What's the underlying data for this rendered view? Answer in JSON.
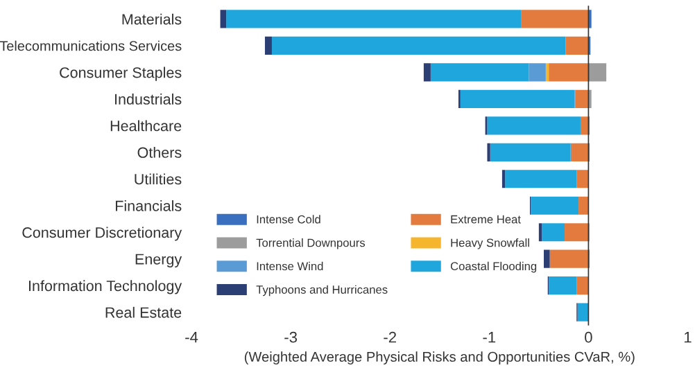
{
  "chart_data": {
    "type": "bar",
    "orientation": "horizontal",
    "stacked": true,
    "xlabel": "(Weighted Average Physical Risks and Opportunities CVaR, %)",
    "categories": [
      "Materials",
      "Telecommunications Services",
      "Consumer Staples",
      "Industrials",
      "Healthcare",
      "Others",
      "Utilities",
      "Financials",
      "Consumer Discretionary",
      "Energy",
      "Information Technology",
      "Real Estate"
    ],
    "series": [
      {
        "name": "Intense Cold",
        "color": "#3a6fc0",
        "values": [
          0.03,
          0.02,
          0.01,
          null,
          0.01,
          0.01,
          null,
          null,
          null,
          0.01,
          null,
          null
        ]
      },
      {
        "name": "Torrential Downpours",
        "color": "#9c9c9c",
        "values": [
          null,
          null,
          0.17,
          0.03,
          null,
          null,
          null,
          null,
          0.01,
          null,
          null,
          null
        ]
      },
      {
        "name": "Extreme Heat",
        "color": "#e27b3d",
        "values": [
          -0.68,
          -0.23,
          -0.4,
          -0.13,
          -0.08,
          -0.17,
          -0.12,
          -0.1,
          -0.24,
          -0.39,
          -0.12,
          null
        ]
      },
      {
        "name": "Heavy Snowfall",
        "color": "#f5b52c",
        "values": [
          null,
          null,
          -0.03,
          null,
          null,
          null,
          null,
          null,
          null,
          null,
          null,
          null
        ]
      },
      {
        "name": "Intense Wind",
        "color": "#5b9bd5",
        "values": [
          null,
          null,
          -0.17,
          -0.01,
          null,
          -0.01,
          null,
          null,
          null,
          null,
          null,
          null
        ]
      },
      {
        "name": "Coastal Flooding",
        "color": "#1fa6dd",
        "values": [
          -2.97,
          -2.96,
          -0.99,
          -1.15,
          -0.94,
          -0.81,
          -0.72,
          -0.48,
          -0.23,
          null,
          -0.28,
          -0.11
        ]
      },
      {
        "name": "Typhoons and Hurricanes",
        "color": "#2c3f75",
        "values": [
          -0.06,
          -0.07,
          -0.07,
          -0.02,
          -0.02,
          -0.03,
          -0.03,
          -0.01,
          -0.03,
          -0.06,
          -0.01,
          -0.01
        ]
      }
    ],
    "xlim": [
      -4,
      1
    ],
    "xticks": [
      -4,
      -3,
      -2,
      -1,
      0,
      1
    ],
    "ref_lines": [
      {
        "axis": "x",
        "value": 0,
        "color": "#333333"
      }
    ],
    "grid": false,
    "legend": "lower left"
  }
}
